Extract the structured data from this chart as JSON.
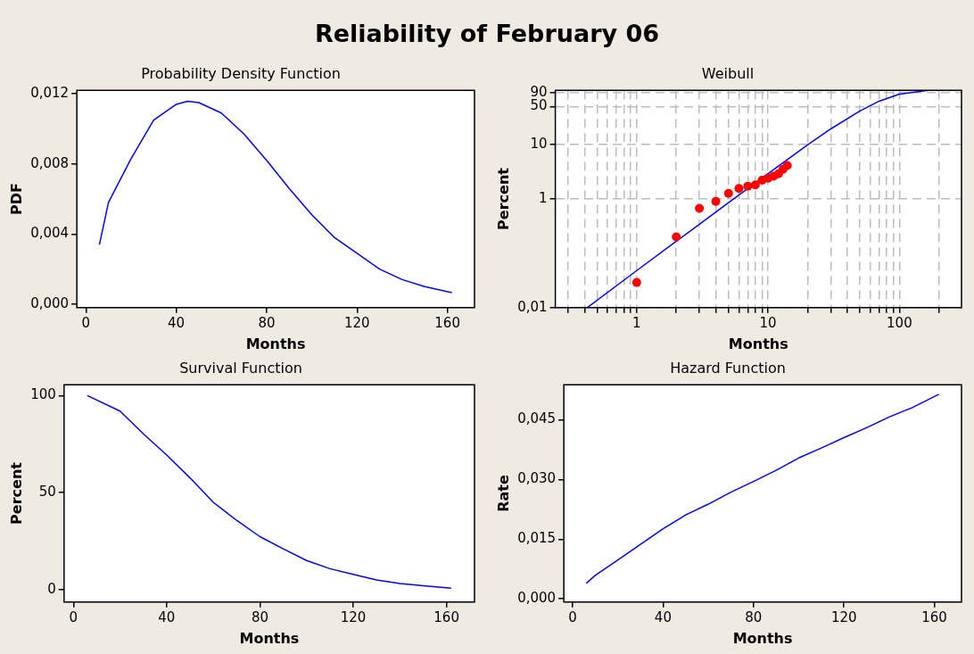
{
  "chart_data": [
    {
      "type": "line",
      "title": "Probability Density Function",
      "annotations": [
        "Reliability of February 06"
      ],
      "xlabel": "Months",
      "ylabel": "PDF",
      "xlim": [
        -4,
        172
      ],
      "xticks": [
        0,
        40,
        80,
        120,
        160
      ],
      "ylim": [
        -0.0002,
        0.0122
      ],
      "yticks": [
        {
          "value": 0,
          "label": "0,000"
        },
        {
          "value": 0.004,
          "label": "0,004"
        },
        {
          "value": 0.008,
          "label": "0,008"
        },
        {
          "value": 0.012,
          "label": "0,012"
        }
      ],
      "legend": false,
      "marker": "none",
      "line_style": "solid",
      "x": [
        6,
        10,
        20,
        30,
        40,
        45,
        50,
        60,
        70,
        80,
        90,
        100,
        110,
        120,
        130,
        140,
        150,
        162
      ],
      "series": [
        {
          "color": "#0000ff",
          "values": [
            0.0034,
            0.0058,
            0.0083,
            0.0105,
            0.0114,
            0.01157,
            0.0115,
            0.0109,
            0.0097,
            0.0082,
            0.0066,
            0.0051,
            0.0038,
            0.0029,
            0.002,
            0.0014,
            0.001,
            0.00066
          ]
        }
      ]
    },
    {
      "type": "scatter",
      "title": "Weibull",
      "xlabel": "Months",
      "ylabel": "Percent",
      "log": "xy",
      "grid": true,
      "legend": false,
      "line_style": "solid",
      "xlim": [
        0.24,
        297
      ],
      "xticks": [
        {
          "value": 0.3,
          "label": null
        },
        {
          "value": 0.4,
          "label": null
        },
        {
          "value": 0.5,
          "label": null
        },
        {
          "value": 0.6,
          "label": null
        },
        {
          "value": 0.7,
          "label": null
        },
        {
          "value": 0.8,
          "label": null
        },
        {
          "value": 0.9,
          "label": null
        },
        1,
        {
          "value": 2,
          "label": null
        },
        {
          "value": 3,
          "label": null
        },
        {
          "value": 4,
          "label": null
        },
        {
          "value": 5,
          "label": null
        },
        {
          "value": 6,
          "label": null
        },
        {
          "value": 7,
          "label": null
        },
        {
          "value": 8,
          "label": null
        },
        {
          "value": 9,
          "label": null
        },
        10,
        {
          "value": 20,
          "label": null
        },
        {
          "value": 30,
          "label": null
        },
        {
          "value": 40,
          "label": null
        },
        {
          "value": 50,
          "label": null
        },
        {
          "value": 60,
          "label": null
        },
        {
          "value": 70,
          "label": null
        },
        {
          "value": 80,
          "label": null
        },
        {
          "value": 90,
          "label": null
        },
        100,
        {
          "value": 200,
          "label": null
        }
      ],
      "ylim": [
        0.01,
        99
      ],
      "yticks": [
        {
          "value": 0.01,
          "label": "0,01"
        },
        1,
        10,
        50,
        90
      ],
      "series": [
        {
          "type": "scatter",
          "marker": "circle",
          "color": "#ff0000",
          "x": [
            1,
            2,
            3,
            4,
            5,
            6,
            7,
            8,
            9,
            10,
            11,
            12,
            13,
            14
          ],
          "values": [
            0.029,
            0.2,
            0.67,
            0.9,
            1.26,
            1.55,
            1.7,
            1.8,
            2.2,
            2.4,
            2.6,
            2.9,
            3.5,
            4.1
          ]
        },
        {
          "type": "line",
          "marker": "none",
          "color": "#0000ff",
          "x": [
            0.42,
            1,
            2,
            3,
            5,
            10,
            20,
            30,
            50,
            70,
            100,
            165
          ],
          "values": [
            0.01,
            0.048,
            0.166,
            0.34,
            0.85,
            2.9,
            9.8,
            19.3,
            41.3,
            62.4,
            84.1,
            99
          ]
        }
      ]
    },
    {
      "type": "line",
      "title": "Survival Function",
      "xlabel": "Months",
      "ylabel": "Percent",
      "xlim": [
        -4,
        172
      ],
      "xticks": [
        0,
        40,
        80,
        120,
        160
      ],
      "ylim": [
        -6.4,
        105.6
      ],
      "yticks": [
        0,
        50,
        100
      ],
      "legend": false,
      "marker": "none",
      "line_style": "solid",
      "x": [
        6,
        20,
        30,
        40,
        50,
        60,
        70,
        80,
        90,
        100,
        110,
        120,
        130,
        140,
        150,
        162
      ],
      "series": [
        {
          "color": "#0000ff",
          "values": [
            100,
            92,
            80.3,
            69.4,
            57.6,
            45,
            35.7,
            27.3,
            21,
            15,
            10.8,
            7.9,
            5,
            3.2,
            2,
            0.8
          ]
        }
      ]
    },
    {
      "type": "line",
      "title": "Hazard Function",
      "xlabel": "Months",
      "ylabel": "Rate",
      "xlim": [
        -3.9,
        172
      ],
      "xticks": [
        0,
        40,
        80,
        120,
        160
      ],
      "ylim": [
        -0.0008,
        0.0538
      ],
      "yticks": [
        {
          "value": 0,
          "label": "0,000"
        },
        {
          "value": 0.015,
          "label": "0,015"
        },
        {
          "value": 0.03,
          "label": "0,030"
        },
        {
          "value": 0.045,
          "label": "0,045"
        }
      ],
      "legend": false,
      "marker": "none",
      "line_style": "solid",
      "x": [
        6,
        10,
        20,
        30,
        40,
        50,
        60,
        70,
        80,
        90,
        100,
        110,
        120,
        130,
        140,
        150,
        162
      ],
      "series": [
        {
          "color": "#0000ff",
          "values": [
            0.0039,
            0.0059,
            0.0098,
            0.0137,
            0.0176,
            0.0211,
            0.0238,
            0.0268,
            0.0295,
            0.0323,
            0.0354,
            0.0379,
            0.0405,
            0.043,
            0.0457,
            0.048,
            0.0514
          ]
        }
      ]
    }
  ]
}
